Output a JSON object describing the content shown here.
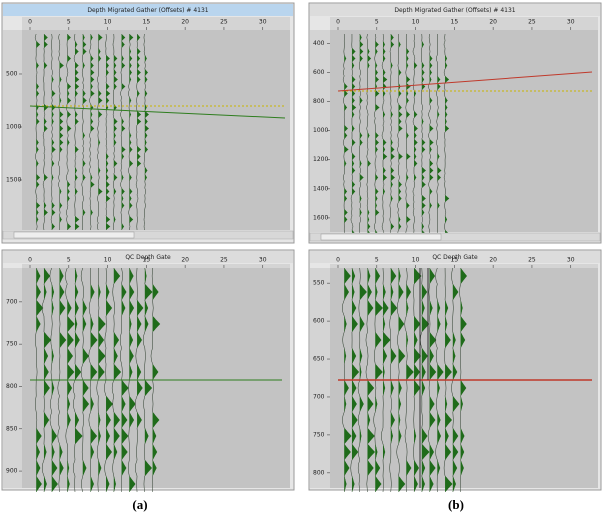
{
  "panels": [
    {
      "title": "Depth Migrated Gather (Offsets) # 4131",
      "xlim": [
        0,
        33
      ],
      "xticks": [
        0,
        5,
        10,
        15,
        20,
        25,
        30
      ],
      "ylim": [
        85,
        1972
      ],
      "yticks": [
        500,
        1000,
        1500
      ]
    },
    {
      "title": "Depth Migrated Gather (Offsets) # 4131",
      "xlim": [
        0,
        33
      ],
      "xticks": [
        0,
        5,
        10,
        15,
        20,
        25,
        30
      ],
      "ylim": [
        308,
        1697
      ],
      "yticks": [
        400,
        600,
        800,
        1000,
        1200,
        1400,
        1600
      ]
    },
    {
      "title": "QC Depth Gate",
      "xlim": [
        0,
        33
      ],
      "xticks": [
        0,
        5,
        10,
        15,
        20,
        25,
        30
      ],
      "ylim": [
        660,
        920
      ],
      "yticks": [
        700,
        750,
        800,
        850,
        900
      ]
    },
    {
      "title": "QC Depth Gate",
      "xlim": [
        0,
        33
      ],
      "xticks": [
        0,
        5,
        10,
        15,
        20,
        25,
        30
      ],
      "ylim": [
        530,
        820
      ],
      "yticks": [
        550,
        600,
        650,
        700,
        750,
        800
      ]
    }
  ],
  "captions": [
    "(a)",
    "(b)"
  ]
}
